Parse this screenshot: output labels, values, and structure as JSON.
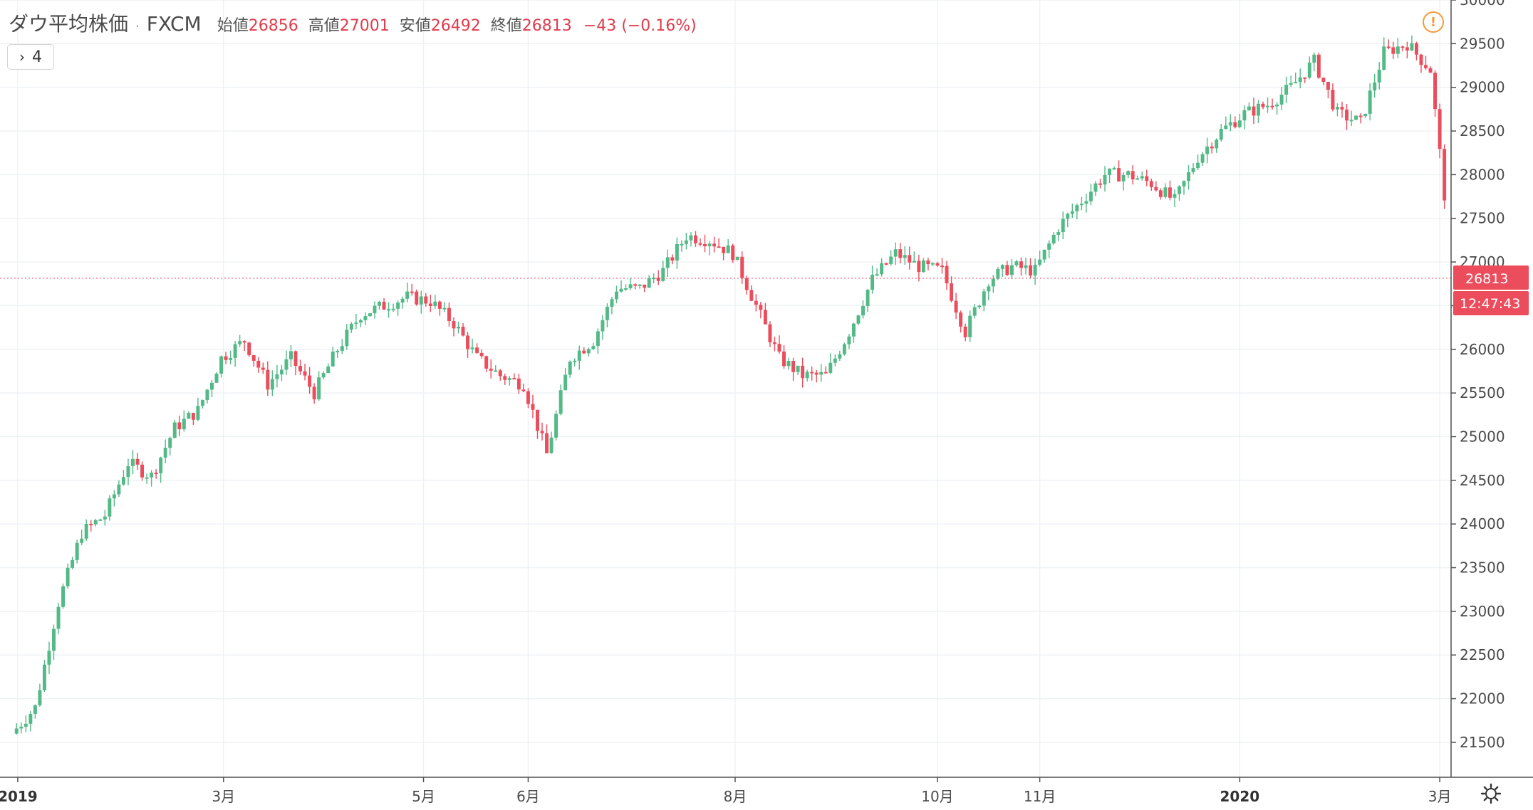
{
  "legend": {
    "symbol": "ダウ平均株価",
    "separator": "·",
    "source": "FXCM",
    "open_label": "始値",
    "open_value": "26856",
    "high_label": "高値",
    "high_value": "27001",
    "low_label": "安値",
    "low_value": "26492",
    "close_label": "終値",
    "close_value": "26813",
    "change": "−43 (−0.16%)"
  },
  "collapse_button": {
    "chevron": "›",
    "count": "4"
  },
  "alert_icon": "!",
  "last_price_label": "26813",
  "countdown_label": "12:47:43",
  "colors": {
    "up": "#53b987",
    "down": "#eb4d5c",
    "grid": "#eef1f4",
    "axis_line": "#505050",
    "price_tag": "#eb4d5c",
    "alert": "#f29a38"
  },
  "chart_data": {
    "type": "candlestick",
    "title": "ダウ平均株価 · FXCM",
    "yticks": [
      21500,
      22000,
      22500,
      23000,
      23500,
      24000,
      24500,
      25000,
      25500,
      26000,
      26500,
      27000,
      27500,
      28000,
      28500,
      29000,
      29500,
      30000
    ],
    "ylim": [
      21100,
      30000
    ],
    "xticks": [
      {
        "label": "2019",
        "week": 0.15,
        "bold": true
      },
      {
        "label": "3月",
        "week": 9.0,
        "bold": false
      },
      {
        "label": "5月",
        "week": 17.6,
        "bold": false
      },
      {
        "label": "6月",
        "week": 22.1,
        "bold": false
      },
      {
        "label": "8月",
        "week": 31.0,
        "bold": false
      },
      {
        "label": "10月",
        "week": 39.7,
        "bold": false
      },
      {
        "label": "11月",
        "week": 44.1,
        "bold": false
      },
      {
        "label": "2020",
        "week": 52.7,
        "bold": true
      },
      {
        "label": "3月",
        "week": 61.3,
        "bold": false
      }
    ],
    "grid": true,
    "last_price": 26813,
    "weekly_closes": [
      {
        "week": 0,
        "close": 21900
      },
      {
        "week": 1,
        "close": 23100
      },
      {
        "week": 2,
        "close": 23900
      },
      {
        "week": 3,
        "close": 24100
      },
      {
        "week": 4,
        "close": 24700
      },
      {
        "week": 5,
        "close": 24550
      },
      {
        "week": 6,
        "close": 25100
      },
      {
        "week": 7,
        "close": 25300
      },
      {
        "week": 8,
        "close": 25900
      },
      {
        "week": 9,
        "close": 26100
      },
      {
        "week": 10,
        "close": 25600
      },
      {
        "week": 11,
        "close": 25900
      },
      {
        "week": 12,
        "close": 25500
      },
      {
        "week": 13,
        "close": 26000
      },
      {
        "week": 14,
        "close": 26400
      },
      {
        "week": 15,
        "close": 26500
      },
      {
        "week": 16,
        "close": 26600
      },
      {
        "week": 17,
        "close": 26550
      },
      {
        "week": 18,
        "close": 26300
      },
      {
        "week": 19,
        "close": 25900
      },
      {
        "week": 20,
        "close": 25700
      },
      {
        "week": 21,
        "close": 25600
      },
      {
        "week": 22,
        "close": 24800
      },
      {
        "week": 23,
        "close": 25900
      },
      {
        "week": 24,
        "close": 26100
      },
      {
        "week": 25,
        "close": 26700
      },
      {
        "week": 26,
        "close": 26700
      },
      {
        "week": 27,
        "close": 26900
      },
      {
        "week": 28,
        "close": 27300
      },
      {
        "week": 29,
        "close": 27250
      },
      {
        "week": 30,
        "close": 27100
      },
      {
        "week": 31,
        "close": 26500
      },
      {
        "week": 32,
        "close": 25900
      },
      {
        "week": 33,
        "close": 25700
      },
      {
        "week": 34,
        "close": 25700
      },
      {
        "week": 35,
        "close": 26200
      },
      {
        "week": 36,
        "close": 26800
      },
      {
        "week": 37,
        "close": 27100
      },
      {
        "week": 38,
        "close": 26950
      },
      {
        "week": 39,
        "close": 26900
      },
      {
        "week": 40,
        "close": 26200
      },
      {
        "week": 41,
        "close": 26800
      },
      {
        "week": 42,
        "close": 26950
      },
      {
        "week": 43,
        "close": 26900
      },
      {
        "week": 44,
        "close": 27400
      },
      {
        "week": 45,
        "close": 27700
      },
      {
        "week": 46,
        "close": 28000
      },
      {
        "week": 47,
        "close": 28000
      },
      {
        "week": 48,
        "close": 27900
      },
      {
        "week": 49,
        "close": 27700
      },
      {
        "week": 50,
        "close": 28200
      },
      {
        "week": 51,
        "close": 28500
      },
      {
        "week": 52,
        "close": 28700
      },
      {
        "week": 53,
        "close": 28800
      },
      {
        "week": 54,
        "close": 29000
      },
      {
        "week": 55,
        "close": 29300
      },
      {
        "week": 56,
        "close": 28700
      },
      {
        "week": 57,
        "close": 28600
      },
      {
        "week": 58,
        "close": 29400
      },
      {
        "week": 59,
        "close": 29500
      },
      {
        "week": 60,
        "close": 29200
      },
      {
        "week": 61,
        "close": 26813
      }
    ]
  }
}
